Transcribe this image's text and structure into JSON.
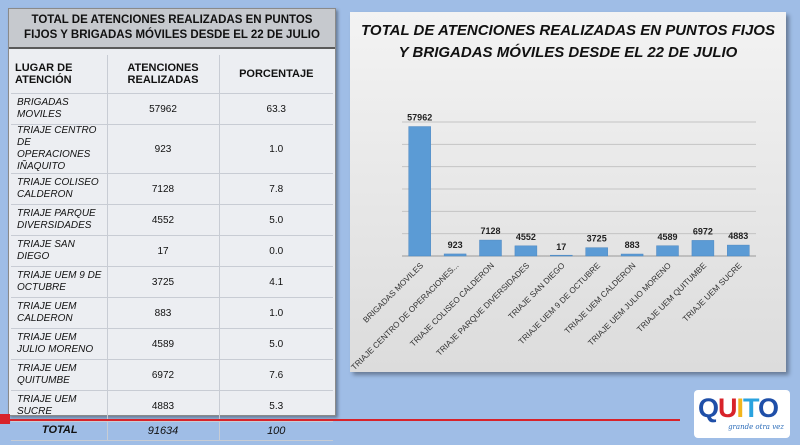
{
  "table": {
    "title": "TOTAL DE ATENCIONES REALIZADAS EN PUNTOS FIJOS Y BRIGADAS MÓVILES DESDE EL 22 DE JULIO",
    "headers": [
      "LUGAR DE ATENCIÓN",
      "ATENCIONES REALIZADAS",
      "PORCENTAJE"
    ],
    "rows": [
      {
        "place": "BRIGADAS MOVILES",
        "count": "57962",
        "pct": "63.3"
      },
      {
        "place": "TRIAJE CENTRO DE OPERACIONES IÑAQUITO",
        "count": "923",
        "pct": "1.0"
      },
      {
        "place": "TRIAJE COLISEO CALDERON",
        "count": "7128",
        "pct": "7.8"
      },
      {
        "place": "TRIAJE PARQUE DIVERSIDADES",
        "count": "4552",
        "pct": "5.0"
      },
      {
        "place": "TRIAJE SAN DIEGO",
        "count": "17",
        "pct": "0.0"
      },
      {
        "place": "TRIAJE UEM 9 DE OCTUBRE",
        "count": "3725",
        "pct": "4.1"
      },
      {
        "place": "TRIAJE UEM CALDERON",
        "count": "883",
        "pct": "1.0"
      },
      {
        "place": "TRIAJE UEM JULIO MORENO",
        "count": "4589",
        "pct": "5.0"
      },
      {
        "place": "TRIAJE UEM QUITUMBE",
        "count": "6972",
        "pct": "7.6"
      },
      {
        "place": "TRIAJE UEM SUCRE",
        "count": "4883",
        "pct": "5.3"
      }
    ],
    "total": {
      "place": "TOTAL",
      "count": "91634",
      "pct": "100"
    }
  },
  "chart_data": {
    "type": "bar",
    "title": "TOTAL DE ATENCIONES REALIZADAS EN PUNTOS FIJOS Y BRIGADAS MÓVILES DESDE EL 22 DE JULIO",
    "categories": [
      "BRIGADAS MOVILES",
      "TRIAJE CENTRO DE OPERACIONES...",
      "TRIAJE COLISEO CALDERON",
      "TRIAJE PARQUE DIVERSIDADES",
      "TRIAJE SAN DIEGO",
      "TRIAJE UEM 9 DE OCTUBRE",
      "TRIAJE UEM CALDERON",
      "TRIAJE UEM JULIO MORENO",
      "TRIAJE UEM QUITUMBE",
      "TRIAJE UEM SUCRE"
    ],
    "values": [
      57962,
      923,
      7128,
      4552,
      17,
      3725,
      883,
      4589,
      6972,
      4883
    ],
    "ylim": [
      0,
      60000
    ],
    "grid": true,
    "bar_color": "#5b9bd5"
  },
  "logo": {
    "word_q": "Q",
    "word_u": "U",
    "word_i": "I",
    "word_t": "T",
    "word_o": "O",
    "tagline": "grande otra vez"
  }
}
